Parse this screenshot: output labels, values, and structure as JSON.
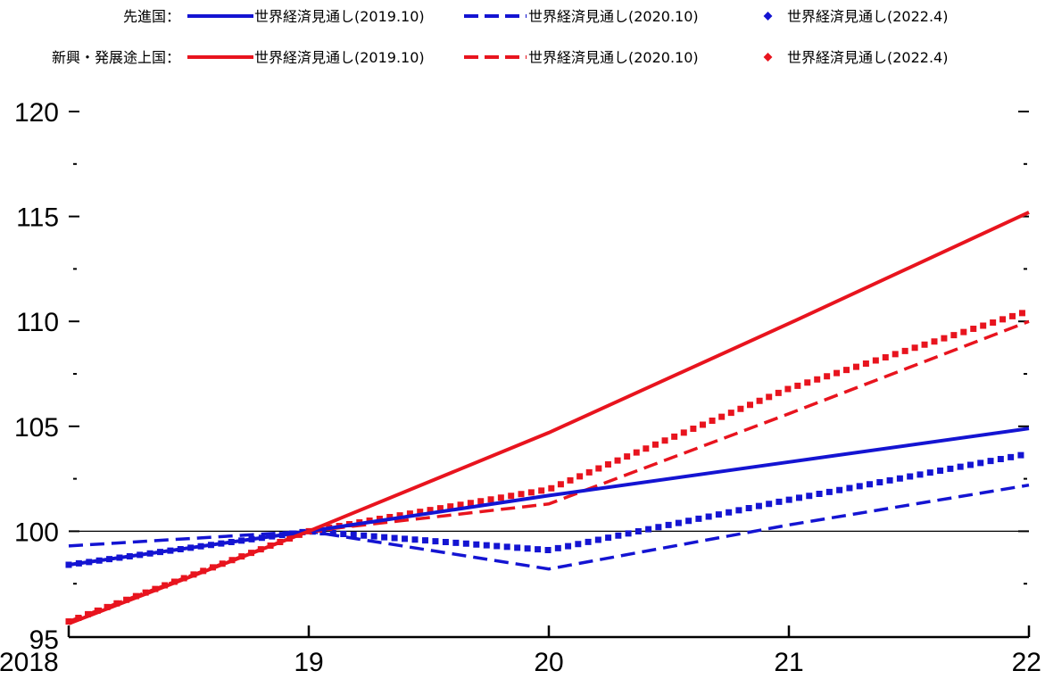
{
  "chart_data": {
    "type": "line",
    "title": "",
    "xlabel": "",
    "ylabel": "",
    "x": [
      2018,
      2019,
      2020,
      2021,
      2022
    ],
    "x_tick_labels": [
      "2018",
      "19",
      "20",
      "21",
      "22"
    ],
    "y_ticks": [
      95,
      100,
      105,
      110,
      115,
      120
    ],
    "y_tick_labels": [
      "95",
      "100",
      "105",
      "110",
      "115",
      "120"
    ],
    "ylim": [
      95,
      120
    ],
    "xlim": [
      2018,
      2022
    ],
    "reference_line": 100,
    "legend_position": "top",
    "legend_groups": [
      {
        "label": "先進国：",
        "color": "#1414d2"
      },
      {
        "label": "新興・発展途上国：",
        "color": "#e8141e"
      }
    ],
    "series": [
      {
        "name": "世界経済見通し(2019.10)",
        "group": "先進国",
        "style": "solid",
        "color": "#1414d2",
        "values": [
          98.4,
          100,
          101.7,
          103.3,
          104.9
        ]
      },
      {
        "name": "世界経済見通し(2020.10)",
        "group": "先進国",
        "style": "dashed",
        "color": "#1414d2",
        "values": [
          99.3,
          100,
          98.2,
          100.3,
          102.2
        ]
      },
      {
        "name": "世界経済見通し(2022.4)",
        "group": "先進国",
        "style": "dotted",
        "color": "#1414d2",
        "values": [
          98.4,
          100,
          99.1,
          101.5,
          103.7
        ]
      },
      {
        "name": "世界経済見通し(2019.10)",
        "group": "新興・発展途上国",
        "style": "solid",
        "color": "#e8141e",
        "values": [
          95.6,
          100,
          104.7,
          109.9,
          115.2
        ]
      },
      {
        "name": "世界経済見通し(2020.10)",
        "group": "新興・発展途上国",
        "style": "dashed",
        "color": "#e8141e",
        "values": [
          95.7,
          100,
          101.3,
          105.6,
          110.0
        ]
      },
      {
        "name": "世界経済見通し(2022.4)",
        "group": "新興・発展途上国",
        "style": "dotted",
        "color": "#e8141e",
        "values": [
          95.7,
          100,
          102.0,
          106.8,
          110.5
        ]
      }
    ]
  }
}
